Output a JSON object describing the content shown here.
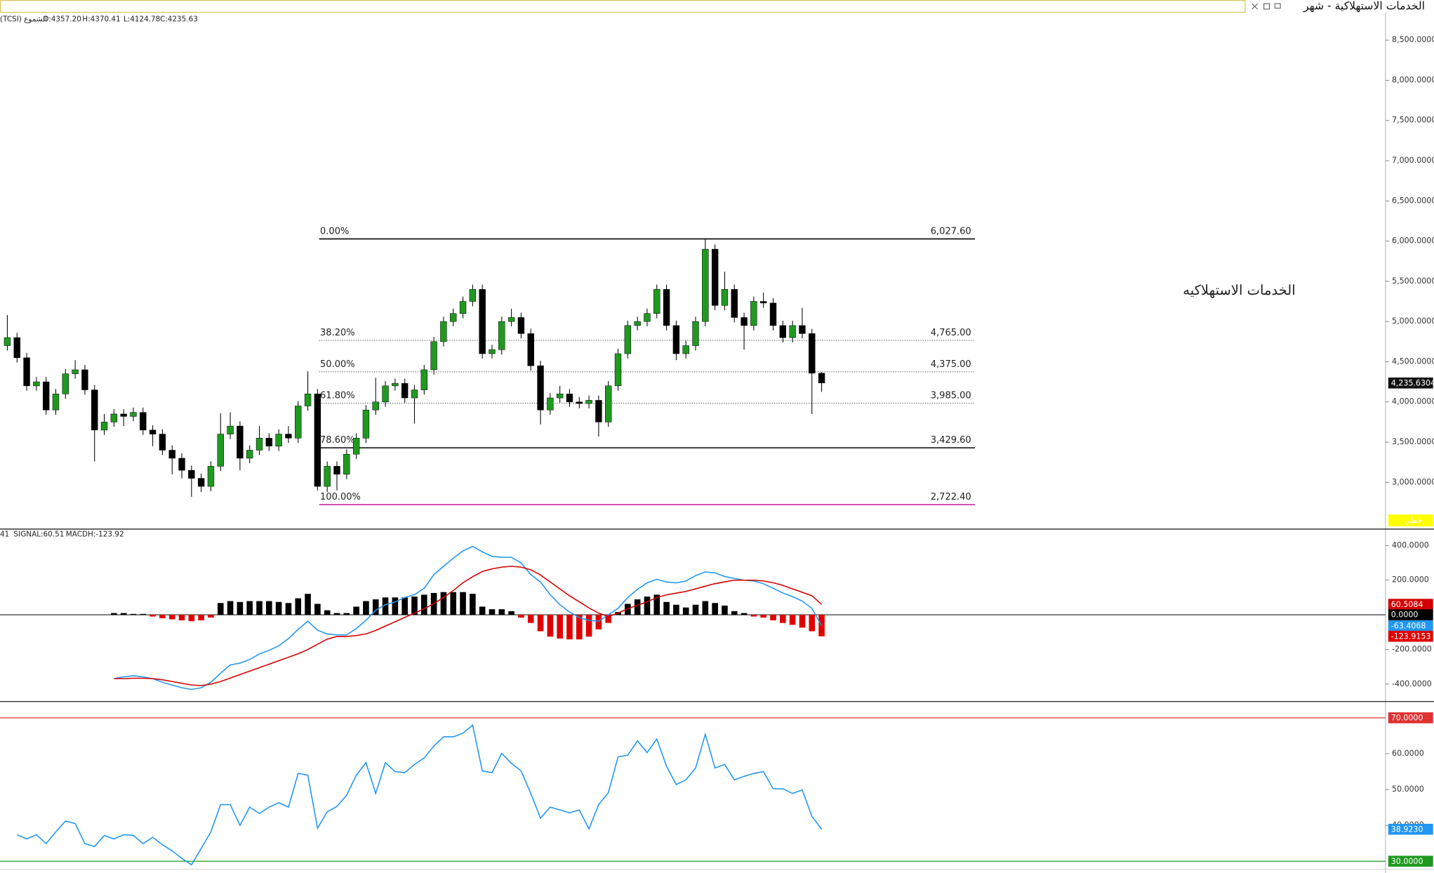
{
  "header": {
    "title": "الخدمات الاستهلاكية - شهر"
  },
  "chart_data": [
    {
      "type": "candlestick",
      "info": [
        "(TCSI) الشموع",
        "O:4357.20",
        "H:4370.41",
        "L:4124.78",
        "C:4235.63"
      ],
      "watermark": "الخدمات الاستهلاكيه",
      "open": [
        4700,
        4800,
        4550,
        4200,
        4250,
        3900,
        4100,
        4350,
        4400,
        4150,
        3650,
        3750,
        3850,
        3820,
        3870,
        3650,
        3600,
        3400,
        3300,
        3150,
        3050,
        2950,
        3200,
        3600,
        3700,
        3300,
        3400,
        3550,
        3450,
        3600,
        3550,
        3950,
        4100,
        2950,
        3200,
        3100,
        3350,
        3550,
        3900,
        4000,
        4200,
        4230,
        4050,
        4150,
        4400,
        4750,
        5000,
        5100,
        5250,
        5400,
        4600,
        4650,
        5000,
        5050,
        4850,
        4450,
        3900,
        4050,
        4100,
        4000,
        3980,
        4020,
        3750,
        4200,
        4600,
        4950,
        5000,
        5100,
        5400,
        4950,
        4600,
        4700,
        5000,
        5900,
        5200,
        5400,
        5050,
        4950,
        5250,
        5230,
        4950,
        4800,
        4950,
        4850,
        4357.2
      ],
      "high": [
        5080,
        4860,
        4610,
        4310,
        4310,
        4160,
        4410,
        4520,
        4460,
        4210,
        3850,
        3910,
        3910,
        3930,
        3930,
        3710,
        3660,
        3460,
        3360,
        3210,
        3110,
        3260,
        3860,
        3870,
        3760,
        3460,
        3700,
        3610,
        3660,
        3700,
        4010,
        4380,
        4160,
        3260,
        3260,
        3410,
        3610,
        3960,
        4300,
        4260,
        4290,
        4290,
        4210,
        4460,
        4810,
        5060,
        5160,
        5310,
        5460,
        5460,
        4710,
        5060,
        5160,
        5110,
        4910,
        4510,
        4110,
        4200,
        4160,
        4060,
        4080,
        4080,
        4260,
        4660,
        5010,
        5060,
        5160,
        5460,
        5460,
        5010,
        4760,
        5060,
        6027.6,
        5960,
        5620,
        5460,
        5110,
        5310,
        5360,
        5290,
        5010,
        5010,
        5170,
        4910,
        4370.41
      ],
      "low": [
        4640,
        4490,
        4140,
        4140,
        3840,
        3840,
        4040,
        4290,
        4090,
        3260,
        3590,
        3690,
        3700,
        3760,
        3590,
        3450,
        3340,
        3100,
        3050,
        2820,
        2880,
        2890,
        3140,
        3540,
        3150,
        3240,
        3340,
        3390,
        3390,
        3490,
        3490,
        3890,
        2900,
        2880,
        2900,
        3040,
        3290,
        3490,
        3840,
        3940,
        4140,
        3990,
        3730,
        4090,
        4340,
        4690,
        4940,
        5040,
        5190,
        4540,
        4540,
        4590,
        4940,
        4790,
        4390,
        3720,
        3840,
        3990,
        3940,
        3920,
        3920,
        3570,
        3690,
        4140,
        4540,
        4890,
        4940,
        5040,
        4890,
        4520,
        4540,
        4640,
        4940,
        5140,
        5140,
        4990,
        4650,
        4890,
        5170,
        4890,
        4740,
        4740,
        4790,
        3850,
        4124.78
      ],
      "close": [
        4800,
        4550,
        4200,
        4250,
        3900,
        4100,
        4350,
        4400,
        4150,
        3650,
        3750,
        3850,
        3820,
        3870,
        3650,
        3600,
        3400,
        3300,
        3150,
        3050,
        2950,
        3200,
        3600,
        3700,
        3300,
        3400,
        3550,
        3450,
        3600,
        3550,
        3950,
        4100,
        2950,
        3200,
        3100,
        3350,
        3550,
        3900,
        4000,
        4200,
        4230,
        4050,
        4150,
        4400,
        4750,
        5000,
        5100,
        5250,
        5400,
        4600,
        4650,
        5000,
        5050,
        4850,
        4450,
        3900,
        4050,
        4100,
        4000,
        3980,
        4020,
        3750,
        4200,
        4600,
        4950,
        5000,
        5100,
        5400,
        4950,
        4600,
        4700,
        5000,
        5900,
        5200,
        5400,
        5050,
        4950,
        5250,
        5230,
        4950,
        4800,
        4950,
        4850,
        4357.2,
        4235.6304
      ],
      "up_color": "#1f9a1f",
      "down_color": "#000000",
      "ylim": [
        2430,
        8840
      ],
      "yticks": [
        {
          "value": 3000,
          "label": "3,000.0000"
        },
        {
          "value": 3500,
          "label": "3,500.0000"
        },
        {
          "value": 4000,
          "label": "4,000.0000"
        },
        {
          "value": 4500,
          "label": "4,500.0000"
        },
        {
          "value": 5000,
          "label": "5,000.0000"
        },
        {
          "value": 5500,
          "label": "5,500.0000"
        },
        {
          "value": 6000,
          "label": "6,000.0000"
        },
        {
          "value": 6500,
          "label": "6,500.0000"
        },
        {
          "value": 7000,
          "label": "7,000.0000"
        },
        {
          "value": 7500,
          "label": "7,500.0000"
        },
        {
          "value": 8000,
          "label": "8,000.0000"
        },
        {
          "value": 8500,
          "label": "8,500.0000"
        }
      ],
      "last_label": "4,235.6304",
      "scale_label": "خطي",
      "fib_levels": [
        {
          "name": "0.00%",
          "value": 6027.6,
          "label": "6,027.60",
          "color": "#000000",
          "style": "solid"
        },
        {
          "name": "38.20%",
          "value": 4765,
          "label": "4,765.00",
          "color": "#555555",
          "style": "dotted"
        },
        {
          "name": "50.00%",
          "value": 4375,
          "label": "4,375.00",
          "color": "#555555",
          "style": "dotted"
        },
        {
          "name": "61.80%",
          "value": 3985,
          "label": "3,985.00",
          "color": "#555555",
          "style": "dotted"
        },
        {
          "name": "78.60%",
          "value": 3429.6,
          "label": "3,429.60",
          "color": "#000000",
          "style": "solid"
        },
        {
          "name": "100.00%",
          "value": 2722.4,
          "label": "2,722.40",
          "color": "#c0189a",
          "style": "solid"
        }
      ]
    },
    {
      "type": "macd",
      "info": [
        "41",
        "SIGNAL:60.51",
        "MACDH:-123.92"
      ],
      "ylim": [
        -495,
        484
      ],
      "yticks": [
        {
          "value": -400,
          "label": "-400.0000"
        },
        {
          "value": -200,
          "label": "-200.0000"
        },
        {
          "value": 200,
          "label": "200.0000"
        },
        {
          "value": 400,
          "label": "400.0000"
        }
      ],
      "zero_line": {
        "value": 0,
        "label": "0.0000"
      },
      "macd": {
        "color": "#2196f3",
        "last_label": "-63.4068",
        "values": [
          null,
          null,
          null,
          null,
          null,
          null,
          null,
          null,
          null,
          null,
          null,
          -368,
          -358,
          -352,
          -358,
          -368,
          -389,
          -405,
          -421,
          -431,
          -421,
          -389,
          -337,
          -289,
          -279,
          -258,
          -226,
          -205,
          -179,
          -137,
          -84,
          -37,
          -89,
          -110,
          -116,
          -116,
          -79,
          -32,
          26,
          58,
          74,
          100,
          116,
          153,
          232,
          279,
          326,
          368,
          395,
          363,
          337,
          332,
          332,
          300,
          232,
          189,
          116,
          58,
          16,
          -16,
          -32,
          -37,
          0,
          37,
          100,
          147,
          184,
          205,
          189,
          184,
          195,
          226,
          247,
          242,
          221,
          210,
          200,
          195,
          179,
          153,
          126,
          105,
          79,
          37,
          -63.4068
        ]
      },
      "signal": {
        "color": "#d40000",
        "last_label": "60.5084",
        "values": [
          null,
          null,
          null,
          null,
          null,
          null,
          null,
          null,
          null,
          null,
          null,
          -368,
          -368,
          -366,
          -366,
          -368,
          -375,
          -385,
          -395,
          -405,
          -408,
          -400,
          -385,
          -365,
          -345,
          -325,
          -305,
          -285,
          -265,
          -245,
          -225,
          -200,
          -170,
          -140,
          -125,
          -125,
          -120,
          -110,
          -90,
          -65,
          -40,
          -15,
          10,
          35,
          65,
          100,
          140,
          185,
          220,
          250,
          265,
          275,
          280,
          275,
          260,
          230,
          190,
          150,
          110,
          75,
          40,
          10,
          -10,
          10,
          35,
          55,
          75,
          100,
          115,
          125,
          135,
          150,
          165,
          180,
          190,
          200,
          200,
          200,
          195,
          185,
          170,
          150,
          130,
          110,
          60.5084
        ]
      },
      "histogram": {
        "pos_color": "#000000",
        "neg_color": "#e00000",
        "last_label": "-123.9153",
        "values": [
          null,
          null,
          null,
          null,
          null,
          null,
          null,
          null,
          null,
          null,
          null,
          10,
          10,
          5,
          5,
          -10,
          -20,
          -26,
          -32,
          -37,
          -32,
          -16,
          68,
          79,
          74,
          79,
          79,
          79,
          74,
          68,
          95,
          121,
          63,
          26,
          10,
          10,
          47,
          79,
          89,
          100,
          100,
          100,
          105,
          116,
          126,
          131,
          131,
          131,
          121,
          47,
          32,
          32,
          21,
          -16,
          -47,
          -95,
          -126,
          -137,
          -142,
          -142,
          -126,
          -84,
          -47,
          16,
          63,
          89,
          105,
          116,
          74,
          58,
          42,
          58,
          79,
          68,
          53,
          21,
          10,
          -10,
          -16,
          -32,
          -47,
          -58,
          -74,
          -95,
          -123.9153
        ]
      }
    },
    {
      "type": "line",
      "color": "#2196f3",
      "ylim": [
        28.5,
        74.3
      ],
      "yticks": [
        {
          "value": 40,
          "label": "40.0000"
        },
        {
          "value": 50,
          "label": "50.0000"
        },
        {
          "value": 60,
          "label": "60.0000"
        }
      ],
      "levels": [
        {
          "value": 70,
          "label": "70.0000",
          "color": "#e03030"
        },
        {
          "value": 30,
          "label": "30.0000",
          "color": "#1f9a1f"
        }
      ],
      "last_label": "38.9230",
      "values": [
        null,
        37.4,
        36.2,
        37.4,
        34.9,
        38.2,
        41.2,
        40.5,
        34.9,
        34.1,
        37.2,
        36.2,
        37.4,
        37.2,
        34.9,
        36.7,
        34.6,
        32.9,
        30.8,
        29.0,
        33.6,
        38.2,
        45.8,
        45.8,
        40.0,
        45.1,
        43.3,
        45.1,
        46.3,
        45.1,
        54.5,
        54.0,
        39.2,
        43.8,
        45.3,
        48.4,
        54.0,
        57.5,
        48.9,
        57.5,
        55.0,
        54.7,
        57.0,
        58.8,
        62.1,
        64.7,
        64.7,
        65.7,
        68.0,
        55.2,
        54.7,
        60.1,
        57.3,
        55.2,
        48.9,
        42.0,
        45.1,
        44.3,
        43.5,
        44.3,
        39.0,
        45.8,
        49.1,
        59.1,
        59.6,
        63.6,
        60.3,
        64.1,
        56.5,
        51.4,
        52.7,
        56.0,
        65.4,
        56.0,
        57.0,
        52.7,
        53.7,
        54.5,
        55.0,
        50.2,
        50.2,
        48.9,
        49.9,
        42.5,
        38.923
      ]
    }
  ]
}
